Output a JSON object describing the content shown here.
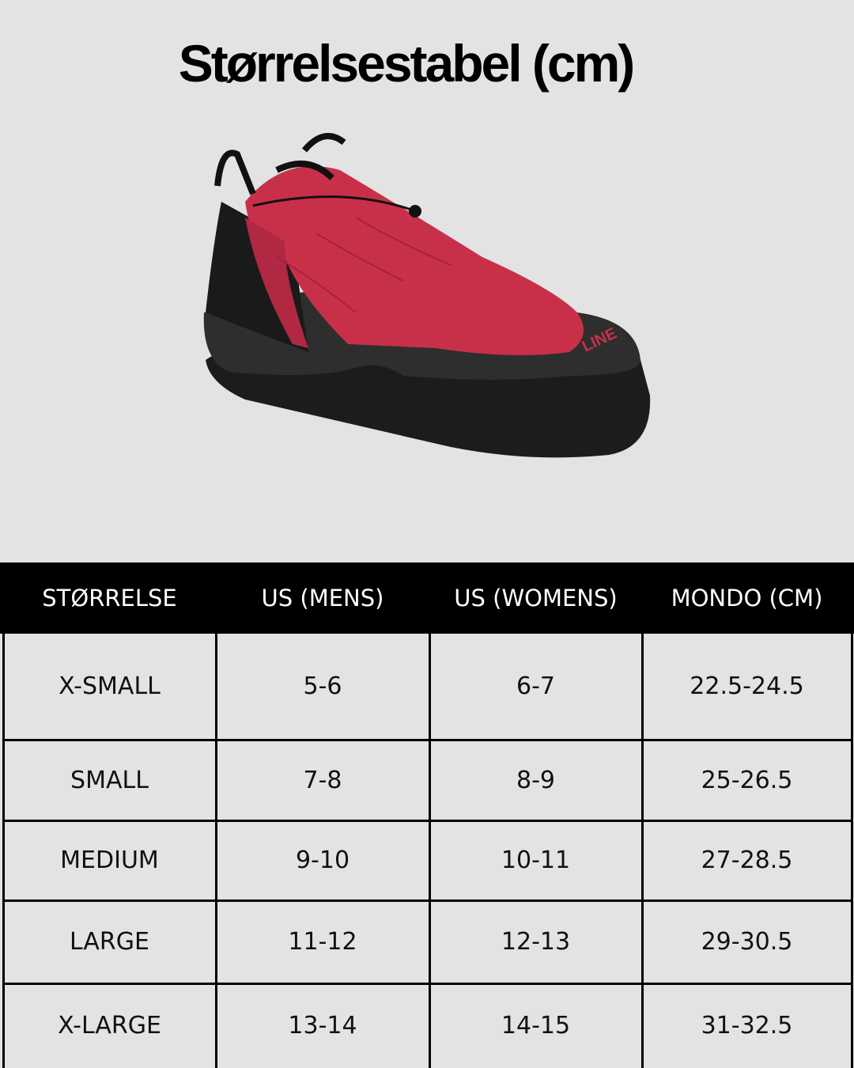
{
  "title": "Størrelsestabel (cm)",
  "product_image": {
    "alt_logo_text": "LINE",
    "colors": {
      "upper": "#c8304a",
      "sole": "#2a2a2a"
    }
  },
  "table": {
    "headers": [
      "STØRRELSE",
      "US (MENS)",
      "US (WOMENS)",
      "MONDO (CM)"
    ],
    "rows": [
      [
        "X-SMALL",
        "5-6",
        "6-7",
        "22.5-24.5"
      ],
      [
        "SMALL",
        "7-8",
        "8-9",
        "25-26.5"
      ],
      [
        "MEDIUM",
        "9-10",
        "10-11",
        "27-28.5"
      ],
      [
        "LARGE",
        "11-12",
        "12-13",
        "29-30.5"
      ],
      [
        "X-LARGE",
        "13-14",
        "14-15",
        "31-32.5"
      ]
    ]
  },
  "colors": {
    "background": "#e3e3e3",
    "header_bg": "#000000",
    "header_text": "#ffffff"
  }
}
